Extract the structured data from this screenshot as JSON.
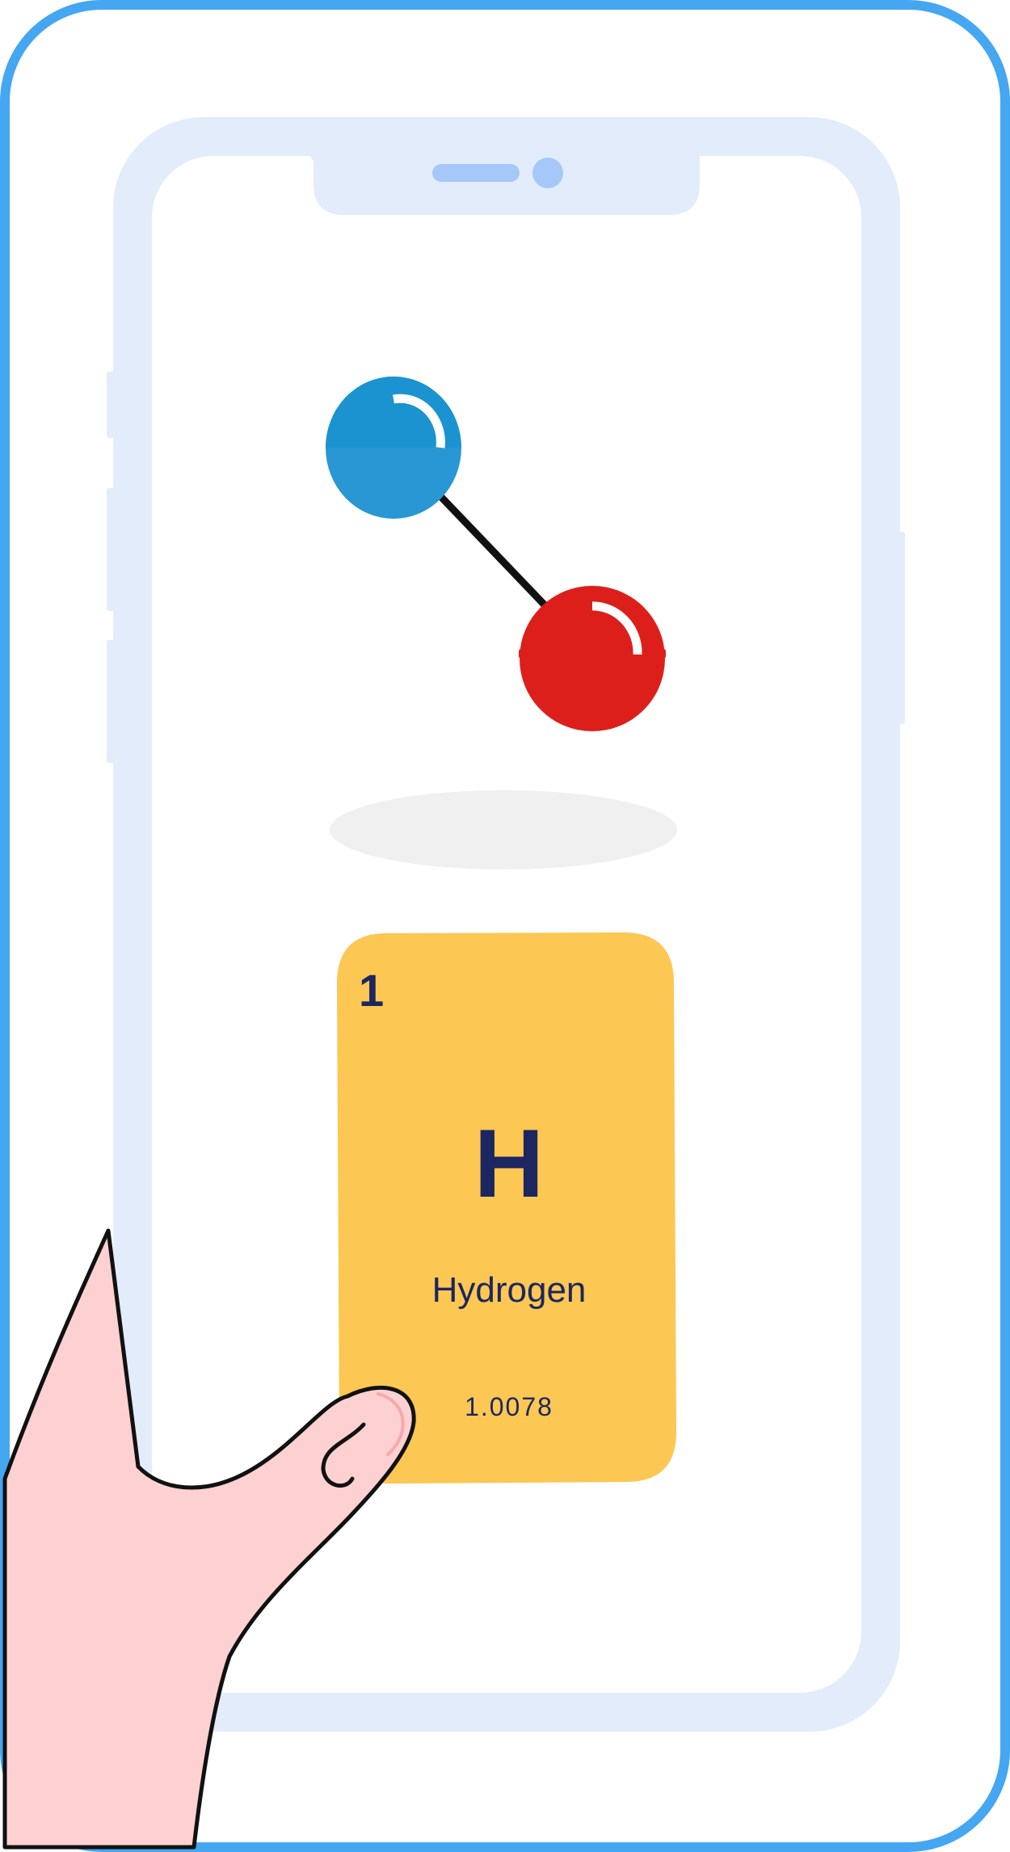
{
  "element_card": {
    "atomic_number": "1",
    "symbol": "H",
    "name": "Hydrogen",
    "atomic_mass": "1.0078"
  },
  "colors": {
    "frame_border": "#45a6f2",
    "phone_body": "#e2ecfb",
    "notch_speaker": "#a6c8f9",
    "atom_blue": "#1b96d4",
    "atom_red": "#dc1f1a",
    "card_background": "#fcc752",
    "card_text": "#1c2660",
    "shadow": "#f0f0f0",
    "finger_skin": "#fdd1d2"
  },
  "icons": {
    "molecule": "molecule-model-icon",
    "pointer": "pointing-finger-icon"
  }
}
